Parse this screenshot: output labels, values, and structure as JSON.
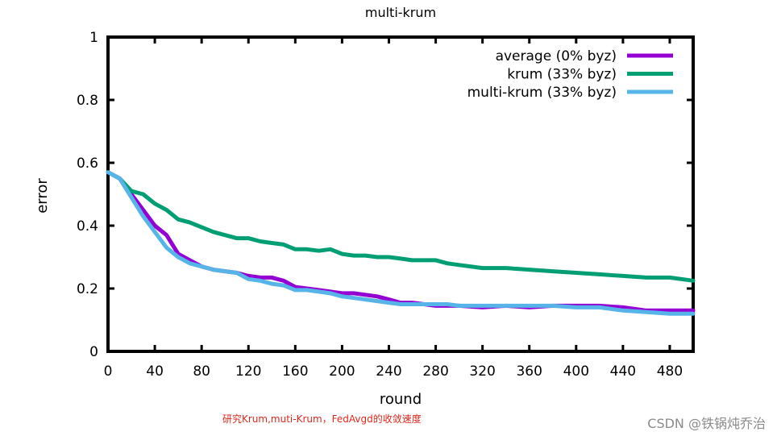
{
  "chart_data": {
    "type": "line",
    "title": "multi-krum",
    "xlabel": "round",
    "ylabel": "error",
    "xlim": [
      0,
      500
    ],
    "ylim": [
      0,
      1
    ],
    "xticks": [
      0,
      40,
      80,
      120,
      160,
      200,
      240,
      280,
      320,
      360,
      400,
      440,
      480
    ],
    "yticks": [
      0,
      0.2,
      0.4,
      0.6,
      0.8,
      1
    ],
    "ytick_labels": [
      "0",
      "0.2",
      "0.4",
      "0.6",
      "0.8",
      "1"
    ],
    "grid": false,
    "legend_position": "top-right",
    "series": [
      {
        "name": "average (0% byz)",
        "color": "#9400d3",
        "x": [
          0,
          10,
          20,
          30,
          40,
          50,
          60,
          70,
          80,
          90,
          100,
          110,
          120,
          130,
          140,
          150,
          160,
          170,
          180,
          190,
          200,
          210,
          220,
          230,
          240,
          250,
          260,
          270,
          280,
          290,
          300,
          320,
          340,
          360,
          380,
          400,
          420,
          440,
          460,
          480,
          500
        ],
        "y": [
          0.57,
          0.55,
          0.5,
          0.45,
          0.4,
          0.37,
          0.31,
          0.29,
          0.27,
          0.26,
          0.255,
          0.25,
          0.24,
          0.235,
          0.235,
          0.225,
          0.205,
          0.2,
          0.195,
          0.19,
          0.185,
          0.185,
          0.18,
          0.175,
          0.165,
          0.155,
          0.155,
          0.15,
          0.145,
          0.145,
          0.145,
          0.14,
          0.145,
          0.14,
          0.145,
          0.145,
          0.145,
          0.14,
          0.13,
          0.13,
          0.13
        ]
      },
      {
        "name": "krum (33% byz)",
        "color": "#009e73",
        "x": [
          0,
          10,
          20,
          30,
          40,
          50,
          60,
          70,
          80,
          90,
          100,
          110,
          120,
          130,
          140,
          150,
          160,
          170,
          180,
          190,
          200,
          210,
          220,
          230,
          240,
          250,
          260,
          270,
          280,
          290,
          300,
          320,
          340,
          360,
          380,
          400,
          420,
          440,
          460,
          480,
          500
        ],
        "y": [
          0.57,
          0.55,
          0.51,
          0.5,
          0.47,
          0.45,
          0.42,
          0.41,
          0.395,
          0.38,
          0.37,
          0.36,
          0.36,
          0.35,
          0.345,
          0.34,
          0.325,
          0.325,
          0.32,
          0.325,
          0.31,
          0.305,
          0.305,
          0.3,
          0.3,
          0.295,
          0.29,
          0.29,
          0.29,
          0.28,
          0.275,
          0.265,
          0.265,
          0.26,
          0.255,
          0.25,
          0.245,
          0.24,
          0.235,
          0.235,
          0.225
        ]
      },
      {
        "name": "multi-krum (33% byz)",
        "color": "#56b4e9",
        "x": [
          0,
          10,
          20,
          30,
          40,
          50,
          60,
          70,
          80,
          90,
          100,
          110,
          120,
          130,
          140,
          150,
          160,
          170,
          180,
          190,
          200,
          210,
          220,
          230,
          240,
          250,
          260,
          270,
          280,
          290,
          300,
          320,
          340,
          360,
          380,
          400,
          420,
          440,
          460,
          480,
          500
        ],
        "y": [
          0.57,
          0.55,
          0.49,
          0.43,
          0.38,
          0.33,
          0.3,
          0.28,
          0.27,
          0.26,
          0.255,
          0.25,
          0.23,
          0.225,
          0.215,
          0.21,
          0.195,
          0.195,
          0.19,
          0.185,
          0.175,
          0.17,
          0.165,
          0.16,
          0.155,
          0.15,
          0.15,
          0.15,
          0.15,
          0.15,
          0.145,
          0.145,
          0.145,
          0.145,
          0.145,
          0.14,
          0.14,
          0.13,
          0.125,
          0.12,
          0.12
        ]
      }
    ]
  },
  "caption": "研究Krum,muti-Krum，FedAvgd的收敛速度",
  "watermark": "CSDN @铁锅炖乔治"
}
